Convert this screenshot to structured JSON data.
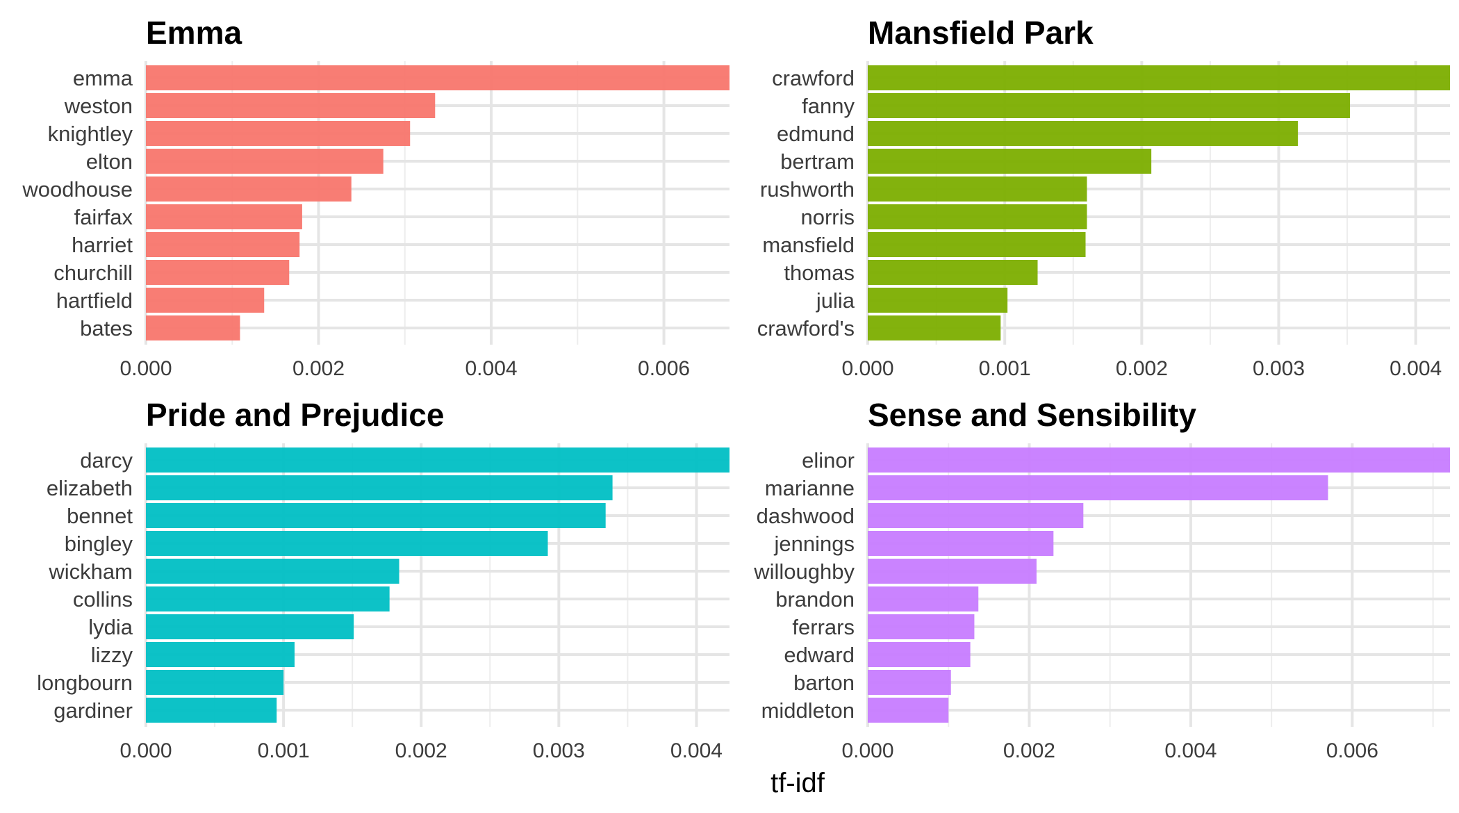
{
  "chart_data": {
    "type": "bar",
    "orientation": "horizontal",
    "xlabel": "tf-idf",
    "ylabel": "",
    "grid": true,
    "legend": "none",
    "panels": [
      {
        "title": "Emma",
        "color": "#F8766D",
        "categories": [
          "emma",
          "weston",
          "knightley",
          "elton",
          "woodhouse",
          "fairfax",
          "harriet",
          "churchill",
          "hartfield",
          "bates"
        ],
        "values": [
          0.00676,
          0.00335,
          0.00306,
          0.00275,
          0.00238,
          0.00181,
          0.00178,
          0.00166,
          0.00137,
          0.00109
        ],
        "xlim": [
          0,
          0.00676
        ],
        "ticks": [
          0,
          0.002,
          0.004,
          0.006
        ],
        "tick_labels": [
          "0.000",
          "0.002",
          "0.004",
          "0.006"
        ],
        "minor_ticks": [
          0.001,
          0.003,
          0.005
        ]
      },
      {
        "title": "Mansfield Park",
        "color": "#7CAE00",
        "categories": [
          "crawford",
          "fanny",
          "edmund",
          "bertram",
          "rushworth",
          "norris",
          "mansfield",
          "thomas",
          "julia",
          "crawford's"
        ],
        "values": [
          0.00425,
          0.00352,
          0.00314,
          0.00207,
          0.0016,
          0.0016,
          0.00159,
          0.00124,
          0.00102,
          0.00097
        ],
        "xlim": [
          0,
          0.00425
        ],
        "ticks": [
          0,
          0.001,
          0.002,
          0.003,
          0.004
        ],
        "tick_labels": [
          "0.000",
          "0.001",
          "0.002",
          "0.003",
          "0.004"
        ],
        "minor_ticks": [
          0.0005,
          0.0015,
          0.0025,
          0.0035
        ]
      },
      {
        "title": "Pride and Prejudice",
        "color": "#00BFC4",
        "categories": [
          "darcy",
          "elizabeth",
          "bennet",
          "bingley",
          "wickham",
          "collins",
          "lydia",
          "lizzy",
          "longbourn",
          "gardiner"
        ],
        "values": [
          0.00424,
          0.00339,
          0.00334,
          0.00292,
          0.00184,
          0.00177,
          0.00151,
          0.00108,
          0.001,
          0.00095
        ],
        "xlim": [
          0,
          0.00424
        ],
        "ticks": [
          0,
          0.001,
          0.002,
          0.003,
          0.004
        ],
        "tick_labels": [
          "0.000",
          "0.001",
          "0.002",
          "0.003",
          "0.004"
        ],
        "minor_ticks": [
          0.0005,
          0.0015,
          0.0025,
          0.0035
        ]
      },
      {
        "title": "Sense and Sensibility",
        "color": "#C77CFF",
        "categories": [
          "elinor",
          "marianne",
          "dashwood",
          "jennings",
          "willoughby",
          "brandon",
          "ferrars",
          "edward",
          "barton",
          "middleton"
        ],
        "values": [
          0.00721,
          0.0057,
          0.00267,
          0.0023,
          0.00209,
          0.00137,
          0.00132,
          0.00127,
          0.00103,
          0.001
        ],
        "xlim": [
          0,
          0.00721
        ],
        "ticks": [
          0,
          0.002,
          0.004,
          0.006
        ],
        "tick_labels": [
          "0.000",
          "0.002",
          "0.004",
          "0.006"
        ],
        "minor_ticks": [
          0.001,
          0.003,
          0.005,
          0.007
        ]
      }
    ]
  }
}
